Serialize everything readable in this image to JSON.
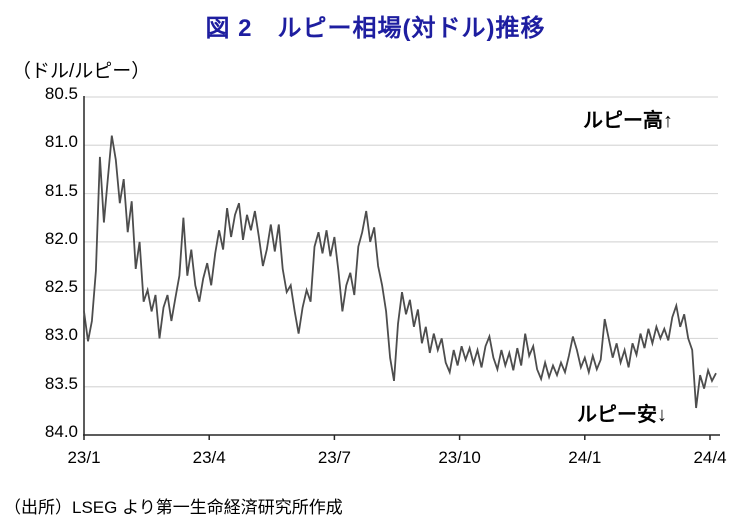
{
  "title": "図 2　ルピー相場(対ドル)推移",
  "unit_label": "（ドル/ルピー）",
  "annotations": {
    "high": "ルピー高↑",
    "low": "ルピー安↓"
  },
  "source": "（出所）LSEG より第一生命経済研究所作成",
  "colors": {
    "title": "#1e1ea0",
    "line": "#4d4d4d",
    "grid": "#d9d9d9",
    "axis": "#262626",
    "text": "#000000"
  },
  "chart_data": {
    "type": "line",
    "title": "ルピー相場(対ドル)推移",
    "ylabel": "ドル/ルピー",
    "ylim": [
      80.5,
      84.0
    ],
    "y_axis_inverted_note": "smaller number (stronger rupee) at top",
    "y_ticks": [
      80.5,
      81.0,
      81.5,
      82.0,
      82.5,
      83.0,
      83.5,
      84.0
    ],
    "y_tick_labels": [
      "80.5",
      "81.0",
      "81.5",
      "82.0",
      "82.5",
      "83.0",
      "83.5",
      "84.0"
    ],
    "x_ticks": [
      "23/1",
      "23/4",
      "23/7",
      "23/10",
      "24/1",
      "24/4"
    ],
    "grid": true,
    "legend": "none",
    "series": [
      {
        "name": "ルピー相場（対ドル）",
        "x_note": "values evenly spaced from 2023/1 to 2024/4 (daily close, approx. every 3 days)",
        "values": [
          82.72,
          83.03,
          82.82,
          82.3,
          81.12,
          81.8,
          81.35,
          80.9,
          81.15,
          81.6,
          81.35,
          81.9,
          81.58,
          82.28,
          82.0,
          82.62,
          82.5,
          82.72,
          82.55,
          83.0,
          82.68,
          82.55,
          82.82,
          82.58,
          82.35,
          81.75,
          82.35,
          82.08,
          82.45,
          82.62,
          82.38,
          82.22,
          82.45,
          82.12,
          81.88,
          82.08,
          81.65,
          81.95,
          81.72,
          81.6,
          81.98,
          81.72,
          81.88,
          81.68,
          81.95,
          82.25,
          82.08,
          81.82,
          82.1,
          81.82,
          82.28,
          82.52,
          82.45,
          82.72,
          82.95,
          82.68,
          82.5,
          82.62,
          82.05,
          81.9,
          82.12,
          81.88,
          82.15,
          81.95,
          82.3,
          82.72,
          82.45,
          82.32,
          82.55,
          82.05,
          81.9,
          81.68,
          82.0,
          81.85,
          82.25,
          82.45,
          82.72,
          83.2,
          83.44,
          82.85,
          82.52,
          82.75,
          82.6,
          82.88,
          82.7,
          83.05,
          82.88,
          83.15,
          82.95,
          83.12,
          83.0,
          83.25,
          83.35,
          83.12,
          83.28,
          83.08,
          83.22,
          83.1,
          83.26,
          83.12,
          83.3,
          83.08,
          82.98,
          83.2,
          83.32,
          83.12,
          83.28,
          83.15,
          83.33,
          83.1,
          83.28,
          82.95,
          83.18,
          83.08,
          83.32,
          83.42,
          83.25,
          83.4,
          83.28,
          83.38,
          83.25,
          83.35,
          83.18,
          82.98,
          83.12,
          83.3,
          83.2,
          83.35,
          83.18,
          83.32,
          83.22,
          82.8,
          83.0,
          83.2,
          83.05,
          83.25,
          83.12,
          83.3,
          83.05,
          83.17,
          82.95,
          83.1,
          82.9,
          83.05,
          82.88,
          83.0,
          82.9,
          83.02,
          82.78,
          82.66,
          82.88,
          82.75,
          83.0,
          83.12,
          83.72,
          83.38,
          83.52,
          83.33,
          83.44,
          83.36
        ]
      }
    ]
  }
}
